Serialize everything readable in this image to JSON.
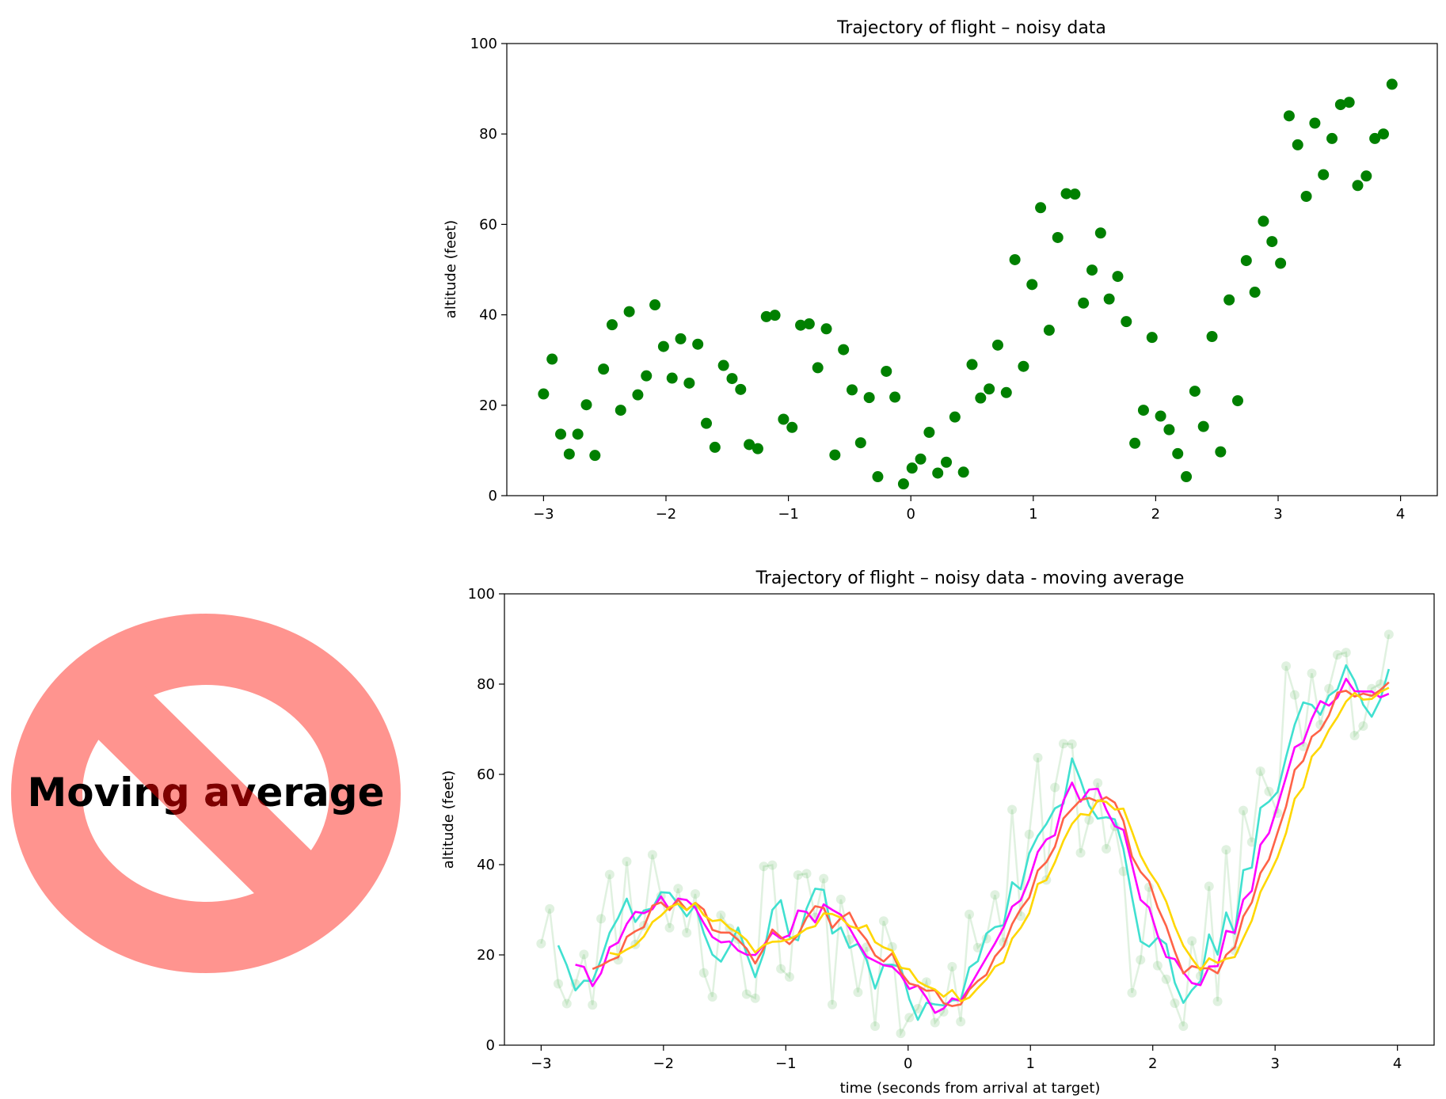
{
  "figure": {
    "background": "#ffffff"
  },
  "no_sign": {
    "label": "Moving average",
    "ring_color": "#ff948f",
    "text_color": "#000000",
    "overlap_text_color": "#7f0000"
  },
  "chart_data": [
    {
      "type": "scatter",
      "title": "Trajectory of flight  –  noisy data",
      "xlabel": "",
      "ylabel": "altitude (feet)",
      "xlim": [
        -3.3,
        4.3
      ],
      "ylim": [
        0,
        100
      ],
      "xticks": [
        -3,
        -2,
        -1,
        0,
        1,
        2,
        3,
        4
      ],
      "xtick_labels": [
        "−3",
        "−2",
        "−1",
        "0",
        "1",
        "2",
        "3",
        "4"
      ],
      "yticks": [
        0,
        20,
        40,
        60,
        80,
        100
      ],
      "ytick_labels": [
        "0",
        "20",
        "40",
        "60",
        "80",
        "100"
      ],
      "grid": false,
      "series": [
        {
          "color": "#008000",
          "x0": -3.0,
          "dx": 0.07,
          "y": [
            22.5,
            30.2,
            13.6,
            9.2,
            13.6,
            20.1,
            8.9,
            28.0,
            37.8,
            18.9,
            40.7,
            22.3,
            26.5,
            42.2,
            33.0,
            26.0,
            34.7,
            24.9,
            33.5,
            16.0,
            10.7,
            28.8,
            25.9,
            23.5,
            11.3,
            10.4,
            39.6,
            39.9,
            16.9,
            15.1,
            37.7,
            38.0,
            28.3,
            36.9,
            9.0,
            32.3,
            23.4,
            11.7,
            21.7,
            4.2,
            27.5,
            21.8,
            2.6,
            6.1,
            8.1,
            14.0,
            5.0,
            7.4,
            17.4,
            5.2,
            29.0,
            21.6,
            23.6,
            33.3,
            22.8,
            52.2,
            28.6,
            46.7,
            63.7,
            36.6,
            57.1,
            66.8,
            66.7,
            42.6,
            49.9,
            58.1,
            43.5,
            48.5,
            38.5,
            11.6,
            18.9,
            35.0,
            17.6,
            14.6,
            9.3,
            4.2,
            23.1,
            15.3,
            35.2,
            9.7,
            43.3,
            21.0,
            52.0,
            45.0,
            60.7,
            56.2,
            51.4,
            84.0,
            77.6,
            66.2,
            82.4,
            71.0,
            79.0,
            86.5,
            87.0,
            68.6,
            70.7,
            79.0,
            80.0,
            91.0
          ]
        }
      ]
    },
    {
      "type": "line",
      "title": "Trajectory of flight  –  noisy data - moving average",
      "xlabel": "time (seconds from arrival at target)",
      "ylabel": "altitude (feet)",
      "xlim": [
        -3.3,
        4.3
      ],
      "ylim": [
        0,
        100
      ],
      "xticks": [
        -3,
        -2,
        -1,
        0,
        1,
        2,
        3,
        4
      ],
      "xtick_labels": [
        "−3",
        "−2",
        "−1",
        "0",
        "1",
        "2",
        "3",
        "4"
      ],
      "yticks": [
        0,
        20,
        40,
        60,
        80,
        100
      ],
      "ytick_labels": [
        "0",
        "20",
        "40",
        "60",
        "80",
        "100"
      ],
      "grid": false,
      "x0": -3.0,
      "dx": 0.07,
      "raw": {
        "color": "#2ca02c",
        "alpha": 0.15,
        "y": [
          22.5,
          30.2,
          13.6,
          9.2,
          13.6,
          20.1,
          8.9,
          28.0,
          37.8,
          18.9,
          40.7,
          22.3,
          26.5,
          42.2,
          33.0,
          26.0,
          34.7,
          24.9,
          33.5,
          16.0,
          10.7,
          28.8,
          25.9,
          23.5,
          11.3,
          10.4,
          39.6,
          39.9,
          16.9,
          15.1,
          37.7,
          38.0,
          28.3,
          36.9,
          9.0,
          32.3,
          23.4,
          11.7,
          21.7,
          4.2,
          27.5,
          21.8,
          2.6,
          6.1,
          8.1,
          14.0,
          5.0,
          7.4,
          17.4,
          5.2,
          29.0,
          21.6,
          23.6,
          33.3,
          22.8,
          52.2,
          28.6,
          46.7,
          63.7,
          36.6,
          57.1,
          66.8,
          66.7,
          42.6,
          49.9,
          58.1,
          43.5,
          48.5,
          38.5,
          11.6,
          18.9,
          35.0,
          17.6,
          14.6,
          9.3,
          4.2,
          23.1,
          15.3,
          35.2,
          9.7,
          43.3,
          21.0,
          52.0,
          45.0,
          60.7,
          56.2,
          51.4,
          84.0,
          77.6,
          66.2,
          82.4,
          71.0,
          79.0,
          86.5,
          87.0,
          68.6,
          70.7,
          79.0,
          80.0,
          91.0
        ]
      },
      "series": [
        {
          "color": "#40e0d0",
          "window": 3
        },
        {
          "color": "#ff00ff",
          "window": 5
        },
        {
          "color": "#ff6347",
          "window": 7
        },
        {
          "color": "#ffd700",
          "window": 9
        }
      ]
    }
  ]
}
